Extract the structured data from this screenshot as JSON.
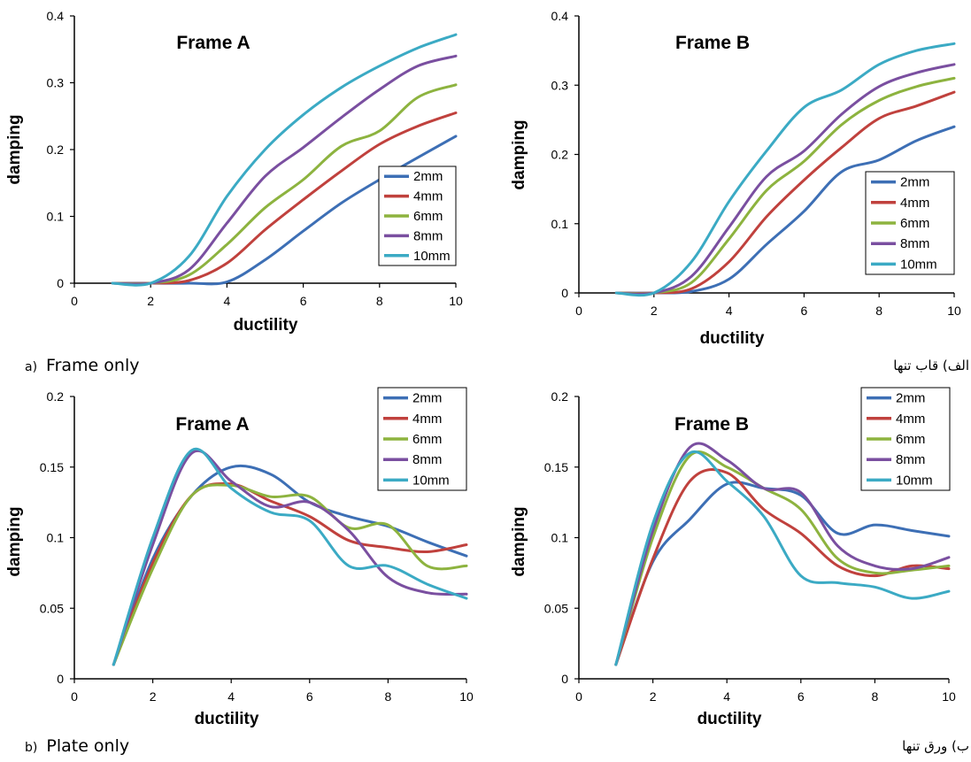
{
  "captions": {
    "a_label": "a)",
    "a_text": "Frame only",
    "a_fa": "الف) قاب تنها",
    "b_label": "b)",
    "b_text": "Plate only",
    "b_fa": "ب) ورق تنها"
  },
  "colors": {
    "2mm": "#3D6FB5",
    "4mm": "#C0413D",
    "6mm": "#8DB33F",
    "8mm": "#7A4FA0",
    "10mm": "#3BAAC4"
  },
  "chart_data": [
    {
      "type": "line",
      "title": "Frame A",
      "xlabel": "ductility",
      "ylabel": "damping",
      "xlim": [
        0,
        10
      ],
      "ylim": [
        0,
        0.4
      ],
      "xticks": [
        "0",
        "2",
        "4",
        "6",
        "8",
        "10"
      ],
      "yticks": [
        "0",
        "0.1",
        "0.2",
        "0.3",
        "0.4"
      ],
      "grid": false,
      "legend": "bottom-right",
      "x": [
        1,
        2,
        3,
        4,
        5,
        6,
        7,
        8,
        9,
        10
      ],
      "series": [
        {
          "name": "2mm",
          "values": [
            0,
            0,
            0,
            0.002,
            0.035,
            0.078,
            0.12,
            0.155,
            0.188,
            0.22
          ]
        },
        {
          "name": "4mm",
          "values": [
            0,
            0,
            0.004,
            0.03,
            0.08,
            0.125,
            0.168,
            0.208,
            0.235,
            0.255
          ]
        },
        {
          "name": "6mm",
          "values": [
            0,
            0,
            0.012,
            0.058,
            0.113,
            0.155,
            0.205,
            0.228,
            0.278,
            0.297
          ]
        },
        {
          "name": "8mm",
          "values": [
            0,
            0,
            0.02,
            0.09,
            0.16,
            0.203,
            0.248,
            0.29,
            0.325,
            0.34
          ]
        },
        {
          "name": "10mm",
          "values": [
            0,
            0,
            0.04,
            0.13,
            0.2,
            0.252,
            0.293,
            0.325,
            0.352,
            0.372
          ]
        }
      ]
    },
    {
      "type": "line",
      "title": "Frame B",
      "xlabel": "ductility",
      "ylabel": "damping",
      "xlim": [
        0,
        10
      ],
      "ylim": [
        0,
        0.4
      ],
      "xticks": [
        "0",
        "2",
        "4",
        "6",
        "8",
        "10"
      ],
      "yticks": [
        "0",
        "0.1",
        "0.2",
        "0.3",
        "0.4"
      ],
      "grid": false,
      "legend": "bottom-right",
      "x": [
        1,
        2,
        3,
        4,
        5,
        6,
        7,
        8,
        9,
        10
      ],
      "series": [
        {
          "name": "2mm",
          "values": [
            0,
            0,
            0.002,
            0.02,
            0.07,
            0.118,
            0.175,
            0.192,
            0.22,
            0.24
          ]
        },
        {
          "name": "4mm",
          "values": [
            0,
            0,
            0.006,
            0.045,
            0.11,
            0.163,
            0.21,
            0.252,
            0.27,
            0.29
          ]
        },
        {
          "name": "6mm",
          "values": [
            0,
            0,
            0.015,
            0.078,
            0.148,
            0.19,
            0.243,
            0.278,
            0.298,
            0.31
          ]
        },
        {
          "name": "8mm",
          "values": [
            0,
            0,
            0.024,
            0.095,
            0.168,
            0.205,
            0.258,
            0.298,
            0.318,
            0.33
          ]
        },
        {
          "name": "10mm",
          "values": [
            0,
            0,
            0.045,
            0.132,
            0.205,
            0.268,
            0.293,
            0.33,
            0.35,
            0.36
          ]
        }
      ]
    },
    {
      "type": "line",
      "title": "Frame A",
      "xlabel": "ductility",
      "ylabel": "damping",
      "xlim": [
        0,
        10
      ],
      "ylim": [
        0,
        0.2
      ],
      "xticks": [
        "0",
        "2",
        "4",
        "6",
        "8",
        "10"
      ],
      "yticks": [
        "0",
        "0.05",
        "0.1",
        "0.15",
        "0.2"
      ],
      "grid": false,
      "legend": "top-right",
      "x": [
        1,
        2,
        3,
        4,
        5,
        6,
        7,
        8,
        9,
        10
      ],
      "series": [
        {
          "name": "2mm",
          "values": [
            0.01,
            0.085,
            0.13,
            0.15,
            0.145,
            0.125,
            0.115,
            0.108,
            0.097,
            0.087
          ]
        },
        {
          "name": "4mm",
          "values": [
            0.01,
            0.082,
            0.13,
            0.138,
            0.126,
            0.115,
            0.098,
            0.093,
            0.09,
            0.095
          ]
        },
        {
          "name": "6mm",
          "values": [
            0.01,
            0.078,
            0.13,
            0.137,
            0.129,
            0.129,
            0.107,
            0.109,
            0.08,
            0.08
          ]
        },
        {
          "name": "8mm",
          "values": [
            0.01,
            0.095,
            0.16,
            0.14,
            0.122,
            0.125,
            0.105,
            0.072,
            0.061,
            0.06
          ]
        },
        {
          "name": "10mm",
          "values": [
            0.01,
            0.1,
            0.162,
            0.135,
            0.118,
            0.112,
            0.08,
            0.08,
            0.067,
            0.057
          ]
        }
      ]
    },
    {
      "type": "line",
      "title": "Frame B",
      "xlabel": "ductility",
      "ylabel": "damping",
      "xlim": [
        0,
        10
      ],
      "ylim": [
        0,
        0.2
      ],
      "xticks": [
        "0",
        "2",
        "4",
        "6",
        "8",
        "10"
      ],
      "yticks": [
        "0",
        "0.05",
        "0.1",
        "0.15",
        "0.2"
      ],
      "grid": false,
      "legend": "top-right",
      "x": [
        1,
        2,
        3,
        4,
        5,
        6,
        7,
        8,
        9,
        10
      ],
      "series": [
        {
          "name": "2mm",
          "values": [
            0.01,
            0.083,
            0.113,
            0.138,
            0.135,
            0.13,
            0.103,
            0.109,
            0.105,
            0.101
          ]
        },
        {
          "name": "4mm",
          "values": [
            0.01,
            0.085,
            0.14,
            0.146,
            0.12,
            0.103,
            0.08,
            0.073,
            0.08,
            0.078
          ]
        },
        {
          "name": "6mm",
          "values": [
            0.01,
            0.1,
            0.158,
            0.15,
            0.135,
            0.12,
            0.085,
            0.075,
            0.077,
            0.08
          ]
        },
        {
          "name": "8mm",
          "values": [
            0.01,
            0.105,
            0.164,
            0.155,
            0.135,
            0.132,
            0.094,
            0.08,
            0.078,
            0.086
          ]
        },
        {
          "name": "10mm",
          "values": [
            0.01,
            0.11,
            0.16,
            0.14,
            0.115,
            0.073,
            0.068,
            0.065,
            0.057,
            0.062
          ]
        }
      ]
    }
  ]
}
